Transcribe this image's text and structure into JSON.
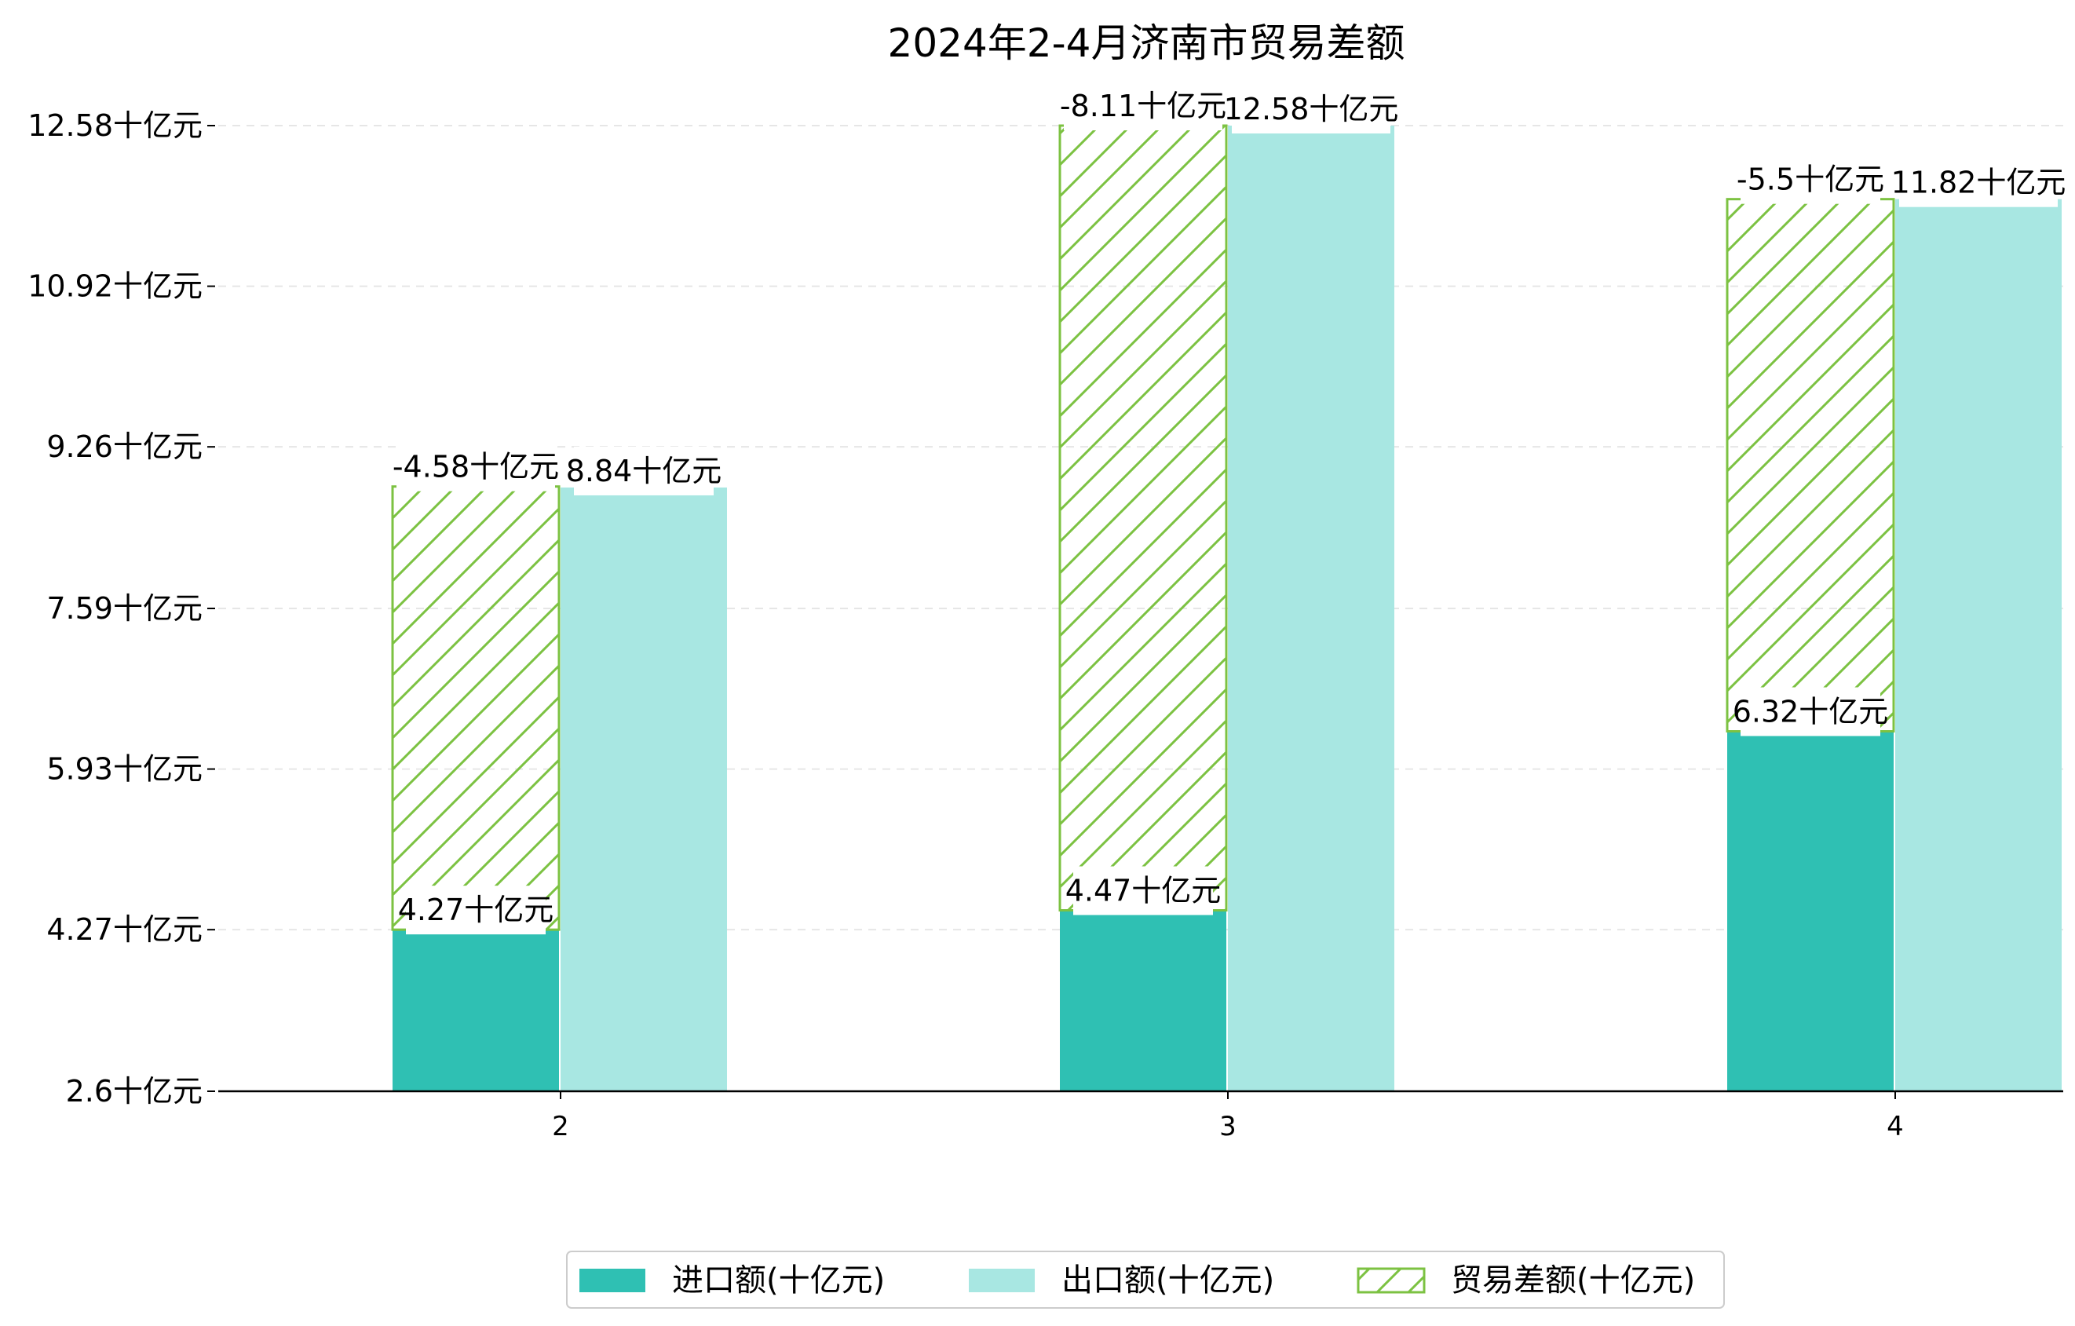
{
  "chart_data": {
    "type": "bar",
    "title": "2024年2-4月济南市贸易差额",
    "categories": [
      "2",
      "3",
      "4"
    ],
    "ylim": [
      2.6,
      12.58
    ],
    "yticks": [
      "2.6十亿元",
      "4.27十亿元",
      "5.93十亿元",
      "7.59十亿元",
      "9.26十亿元",
      "10.92十亿元",
      "12.58十亿元"
    ],
    "ytick_values": [
      2.6,
      4.27,
      5.93,
      7.59,
      9.26,
      10.92,
      12.58
    ],
    "grid": "horizontal dashed",
    "legend_position": "bottom-center",
    "series": [
      {
        "name": "进口额(十亿元)",
        "values": [
          4.27,
          4.47,
          6.32
        ],
        "labels": [
          "4.27十亿元",
          "4.47十亿元",
          "6.32十亿元"
        ],
        "color": "#2fc0b3"
      },
      {
        "name": "出口额(十亿元)",
        "values": [
          8.84,
          12.58,
          11.82
        ],
        "labels": [
          "8.84十亿元",
          "12.58十亿元",
          "11.82十亿元"
        ],
        "color": "#a8e7e2"
      },
      {
        "name": "贸易差额(十亿元)",
        "values": [
          -4.58,
          -8.11,
          -5.5
        ],
        "labels": [
          "-4.58十亿元",
          "-8.11十亿元",
          "-5.5十亿元"
        ],
        "color": "#7cc242",
        "style": "hatched, stacked on import"
      }
    ]
  }
}
